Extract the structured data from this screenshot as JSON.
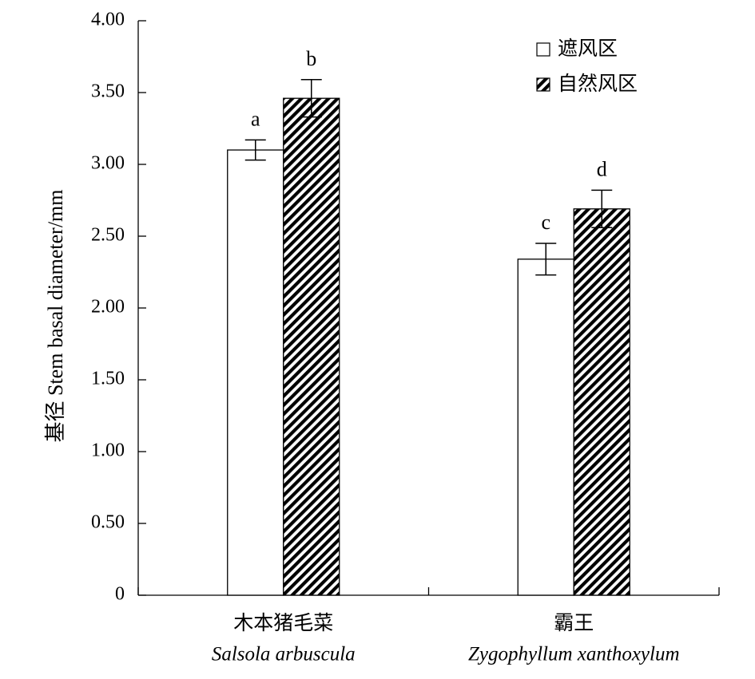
{
  "chart_data": {
    "type": "bar",
    "ylabel": "基径 Stem basal diameter/mm",
    "ylim": [
      0,
      4.0
    ],
    "yticks": [
      "0",
      "0.50",
      "1.00",
      "1.50",
      "2.00",
      "2.50",
      "3.00",
      "3.50",
      "4.00"
    ],
    "categories": [
      {
        "name": "木本猪毛菜",
        "latin": "Salsola arbuscula"
      },
      {
        "name": "霸王",
        "latin": "Zygophyllum xanthoxylum"
      }
    ],
    "series": [
      {
        "name": "遮风区",
        "pattern": "white",
        "values": [
          3.1,
          2.34
        ],
        "errors": [
          0.07,
          0.11
        ],
        "labels": [
          "a",
          "c"
        ]
      },
      {
        "name": "自然风区",
        "pattern": "diagonal-hatch",
        "values": [
          3.46,
          2.69
        ],
        "errors": [
          0.13,
          0.13
        ],
        "labels": [
          "b",
          "d"
        ]
      }
    ],
    "legend_position": "top-right",
    "grid": false
  }
}
